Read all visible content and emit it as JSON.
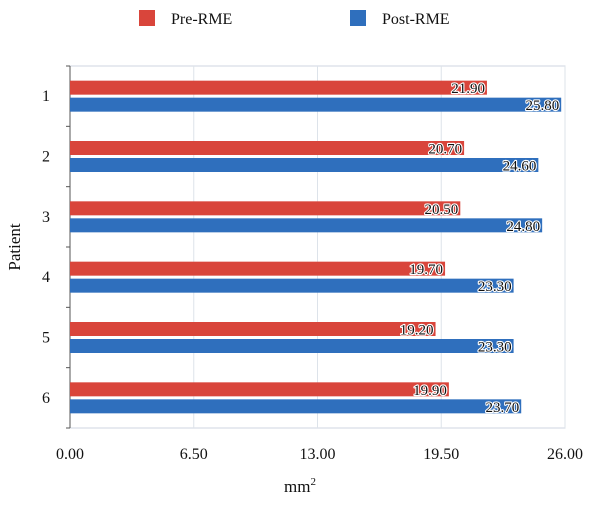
{
  "chart_data": {
    "type": "bar",
    "orientation": "horizontal",
    "categories": [
      "1",
      "2",
      "3",
      "4",
      "5",
      "6"
    ],
    "series": [
      {
        "name": "Pre-RME",
        "color": "#d9453b",
        "values": [
          21.9,
          20.7,
          20.5,
          19.7,
          19.2,
          19.9
        ]
      },
      {
        "name": "Post-RME",
        "color": "#2f6fbd",
        "values": [
          25.8,
          24.6,
          24.8,
          23.3,
          23.3,
          23.7
        ]
      }
    ],
    "xlabel_base": "mm",
    "xlabel_sup": "2",
    "ylabel": "Patient",
    "xlim": [
      0,
      26
    ],
    "xticks": [
      "0.00",
      "6.50",
      "13.00",
      "19.50",
      "26.00"
    ],
    "legend_position": "top",
    "data_labels": true
  }
}
